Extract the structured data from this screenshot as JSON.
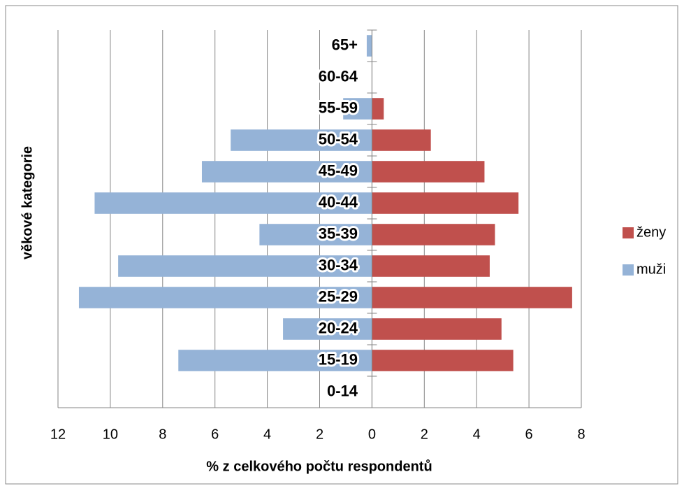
{
  "chart_data": {
    "type": "bar",
    "orientation": "horizontal",
    "x_label": "% z celkového počtu respondentů",
    "y_label": "věkové kategorie",
    "categories": [
      "0-14",
      "15-19",
      "20-24",
      "25-29",
      "30-34",
      "35-39",
      "40-44",
      "45-49",
      "50-54",
      "55-59",
      "60-64",
      "65+"
    ],
    "series": [
      {
        "name": "ženy",
        "color": "#c0504d",
        "values": [
          0,
          5.4,
          4.95,
          7.65,
          4.5,
          4.7,
          5.6,
          4.3,
          2.25,
          0.45,
          0,
          0
        ]
      },
      {
        "name": "muži",
        "color": "#95b3d7",
        "values": [
          0,
          -7.4,
          -3.4,
          -11.2,
          -9.7,
          -4.3,
          -10.6,
          -6.5,
          -5.4,
          -1.1,
          0,
          -0.2
        ]
      }
    ],
    "xlim": [
      -12,
      8
    ],
    "xticks": [
      {
        "value": -12,
        "label": "12"
      },
      {
        "value": -10,
        "label": "10"
      },
      {
        "value": -8,
        "label": "8"
      },
      {
        "value": -6,
        "label": "6"
      },
      {
        "value": -4,
        "label": "4"
      },
      {
        "value": -2,
        "label": "2"
      },
      0,
      2,
      4,
      6,
      8
    ],
    "grid": true,
    "legend": "right"
  }
}
